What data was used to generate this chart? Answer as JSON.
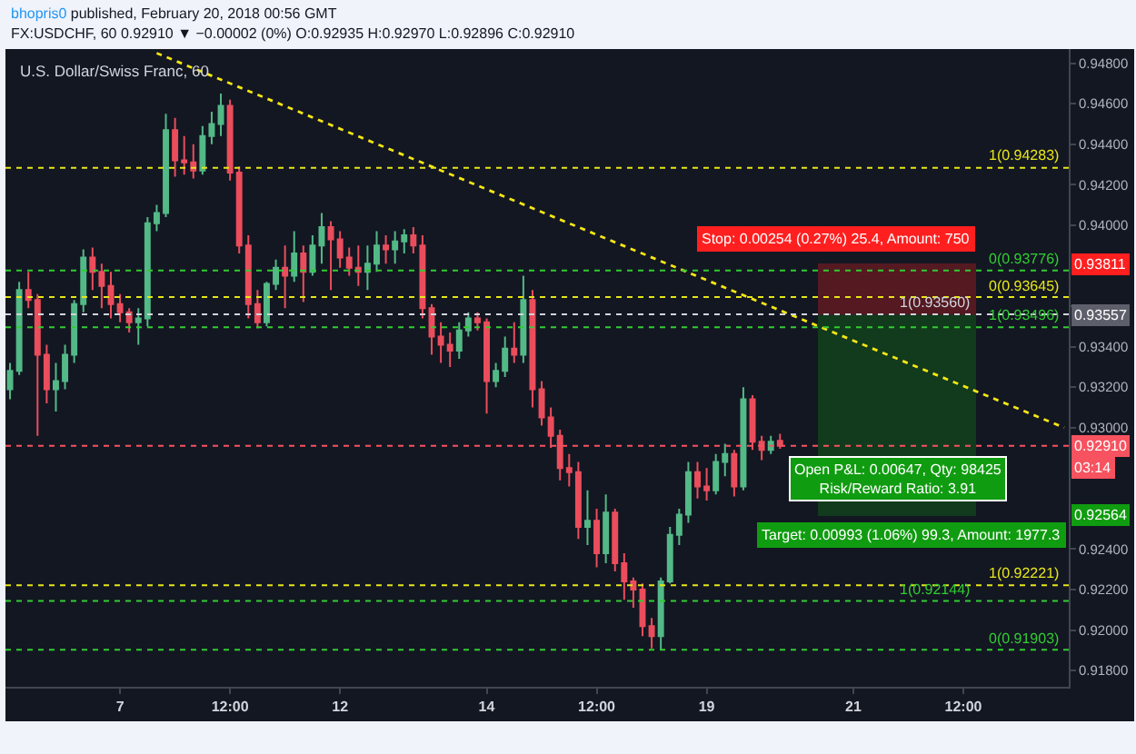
{
  "chart_data": {
    "type": "candlestick",
    "title": "U.S. Dollar/Swiss Franc, 60",
    "subtitle": "FX:USDCHF, 60 0.92910 ▼ −0.00002 (0%) O:0.92935 H:0.92970 L:0.92896 C:0.92910",
    "annotations": [
      "bhopris0 published, February 20, 2018 00:56 GMT",
      "Open P&L: 0.00647, Qty: 98425\nRisk/Reward Ratio: 3.91",
      "03:14",
      {
        "text": "0.93811",
        "y": 0.93811
      },
      {
        "text": "0.93557",
        "y": 0.93557
      },
      {
        "text": "0.92564",
        "y": 0.92564
      }
    ],
    "categories": [
      null,
      null,
      null,
      null,
      null,
      null,
      null,
      null,
      null,
      null,
      null,
      null,
      "7",
      null,
      null,
      null,
      null,
      null,
      null,
      null,
      null,
      null,
      null,
      null,
      "12:00",
      null,
      null,
      null,
      null,
      null,
      null,
      null,
      null,
      null,
      null,
      null,
      "12",
      null,
      null,
      null,
      null,
      null,
      null,
      null,
      null,
      null,
      null,
      null,
      null,
      null,
      null,
      null,
      "14",
      null,
      null,
      null,
      null,
      null,
      null,
      null,
      null,
      null,
      null,
      null,
      "12:00",
      null,
      null,
      null,
      null,
      null,
      null,
      null,
      null,
      null,
      null,
      null,
      "19",
      null,
      null,
      null,
      null,
      null,
      null,
      null,
      null,
      null,
      null,
      null,
      null,
      null,
      null,
      null,
      "21",
      null,
      null,
      null,
      null,
      null,
      null,
      null,
      null,
      null,
      null,
      null,
      "12:00",
      null,
      null,
      null,
      null,
      null,
      null,
      null,
      null,
      null,
      null,
      null
    ],
    "ohlc": [
      [
        0.9319,
        0.9332,
        0.9314,
        0.9328
      ],
      [
        0.9328,
        0.9372,
        0.9326,
        0.9368
      ],
      [
        0.9368,
        0.9377,
        0.9359,
        0.9363
      ],
      [
        0.9363,
        0.9366,
        0.9296,
        0.9336
      ],
      [
        0.9336,
        0.9341,
        0.9312,
        0.9319
      ],
      [
        0.9319,
        0.9332,
        0.9308,
        0.9323
      ],
      [
        0.9323,
        0.9341,
        0.9319,
        0.9336
      ],
      [
        0.9336,
        0.9363,
        0.9332,
        0.9361
      ],
      [
        0.9361,
        0.9388,
        0.9357,
        0.9384
      ],
      [
        0.9384,
        0.9389,
        0.9368,
        0.9377
      ],
      [
        0.9377,
        0.9381,
        0.9359,
        0.937
      ],
      [
        0.937,
        0.9377,
        0.9354,
        0.9361
      ],
      [
        0.9361,
        0.9366,
        0.9352,
        0.9357
      ],
      [
        0.9357,
        0.9359,
        0.9347,
        0.9352
      ],
      [
        0.9352,
        0.9359,
        0.9341,
        0.9354
      ],
      [
        0.9354,
        0.9404,
        0.935,
        0.9401
      ],
      [
        0.9401,
        0.941,
        0.9397,
        0.9406
      ],
      [
        0.9406,
        0.9455,
        0.9404,
        0.9447
      ],
      [
        0.9447,
        0.9453,
        0.9424,
        0.9432
      ],
      [
        0.9432,
        0.9444,
        0.9425,
        0.9431
      ],
      [
        0.9431,
        0.944,
        0.9423,
        0.9427
      ],
      [
        0.9427,
        0.9449,
        0.9425,
        0.9444
      ],
      [
        0.9444,
        0.9456,
        0.944,
        0.945
      ],
      [
        0.945,
        0.9465,
        0.9444,
        0.9459
      ],
      [
        0.9459,
        0.9462,
        0.9422,
        0.9426
      ],
      [
        0.9426,
        0.9429,
        0.9386,
        0.939
      ],
      [
        0.939,
        0.9395,
        0.9354,
        0.9361
      ],
      [
        0.9361,
        0.9368,
        0.9349,
        0.9352
      ],
      [
        0.9352,
        0.9372,
        0.935,
        0.9371
      ],
      [
        0.9371,
        0.9383,
        0.9368,
        0.9379
      ],
      [
        0.9379,
        0.939,
        0.9359,
        0.9375
      ],
      [
        0.9375,
        0.9397,
        0.9372,
        0.9386
      ],
      [
        0.9386,
        0.939,
        0.9362,
        0.9377
      ],
      [
        0.9377,
        0.9395,
        0.9375,
        0.939
      ],
      [
        0.939,
        0.9406,
        0.9381,
        0.9399
      ],
      [
        0.9399,
        0.9402,
        0.9368,
        0.9393
      ],
      [
        0.9393,
        0.9397,
        0.9379,
        0.9384
      ],
      [
        0.9384,
        0.9389,
        0.9375,
        0.9379
      ],
      [
        0.9379,
        0.939,
        0.937,
        0.9377
      ],
      [
        0.9377,
        0.939,
        0.9368,
        0.9381
      ],
      [
        0.9381,
        0.9397,
        0.9377,
        0.939
      ],
      [
        0.939,
        0.9395,
        0.9381,
        0.9388
      ],
      [
        0.9388,
        0.9397,
        0.9381,
        0.9392
      ],
      [
        0.9392,
        0.9398,
        0.9386,
        0.9395
      ],
      [
        0.9395,
        0.9399,
        0.9386,
        0.939
      ],
      [
        0.939,
        0.9395,
        0.9354,
        0.9359
      ],
      [
        0.9359,
        0.9361,
        0.9336,
        0.9345
      ],
      [
        0.9345,
        0.9352,
        0.9332,
        0.9341
      ],
      [
        0.9341,
        0.9347,
        0.933,
        0.9338
      ],
      [
        0.9338,
        0.9352,
        0.9334,
        0.9348
      ],
      [
        0.9348,
        0.9357,
        0.9345,
        0.9354
      ],
      [
        0.9354,
        0.9357,
        0.9348,
        0.9352
      ],
      [
        0.9352,
        0.9354,
        0.9307,
        0.9323
      ],
      [
        0.9323,
        0.9332,
        0.932,
        0.9328
      ],
      [
        0.9328,
        0.9345,
        0.9325,
        0.9339
      ],
      [
        0.9339,
        0.9352,
        0.9332,
        0.9336
      ],
      [
        0.9336,
        0.9375,
        0.9332,
        0.9363
      ],
      [
        0.9363,
        0.9368,
        0.931,
        0.9319
      ],
      [
        0.9319,
        0.9323,
        0.9301,
        0.9305
      ],
      [
        0.9305,
        0.931,
        0.929,
        0.9296
      ],
      [
        0.9296,
        0.9299,
        0.9274,
        0.928
      ],
      [
        0.928,
        0.9287,
        0.9271,
        0.9278
      ],
      [
        0.9278,
        0.9283,
        0.9245,
        0.9251
      ],
      [
        0.9251,
        0.9269,
        0.9242,
        0.9254
      ],
      [
        0.9254,
        0.926,
        0.9231,
        0.9238
      ],
      [
        0.9238,
        0.9267,
        0.9233,
        0.9258
      ],
      [
        0.9258,
        0.926,
        0.9229,
        0.9233
      ],
      [
        0.9233,
        0.9238,
        0.9215,
        0.9224
      ],
      [
        0.9224,
        0.9226,
        0.9211,
        0.922
      ],
      [
        0.922,
        0.9223,
        0.9197,
        0.9202
      ],
      [
        0.9202,
        0.9206,
        0.9191,
        0.9197
      ],
      [
        0.9197,
        0.9226,
        0.919,
        0.9224
      ],
      [
        0.9224,
        0.9251,
        0.9223,
        0.9247
      ],
      [
        0.9247,
        0.926,
        0.9242,
        0.9257
      ],
      [
        0.9257,
        0.9283,
        0.9253,
        0.9278
      ],
      [
        0.9278,
        0.9283,
        0.9265,
        0.9271
      ],
      [
        0.9271,
        0.928,
        0.9264,
        0.9269
      ],
      [
        0.9269,
        0.9287,
        0.9267,
        0.9283
      ],
      [
        0.9283,
        0.9292,
        0.9276,
        0.9287
      ],
      [
        0.9287,
        0.9289,
        0.9266,
        0.9271
      ],
      [
        0.9271,
        0.932,
        0.9269,
        0.9314
      ],
      [
        0.9314,
        0.9316,
        0.9289,
        0.9293
      ],
      [
        0.9293,
        0.9296,
        0.9284,
        0.9289
      ],
      [
        0.9289,
        0.9296,
        0.9287,
        0.9293
      ],
      [
        0.92935,
        0.9297,
        0.92896,
        0.9291
      ],
      null,
      null,
      null,
      null,
      null,
      null,
      null,
      null,
      null,
      null,
      null,
      null,
      null,
      null,
      null,
      null,
      null,
      null,
      null,
      null,
      null,
      null,
      null,
      null,
      null,
      null,
      null,
      null,
      null,
      null,
      null
    ],
    "colors": [
      "#53b987",
      "#53b987",
      "#eb4d5c",
      "#eb4d5c",
      "#eb4d5c",
      "#53b987",
      "#53b987",
      "#53b987",
      "#53b987",
      "#eb4d5c",
      "#eb4d5c",
      "#eb4d5c",
      "#eb4d5c",
      "#eb4d5c",
      "#53b987",
      "#53b987",
      "#53b987",
      "#53b987",
      "#eb4d5c",
      "#eb4d5c",
      "#eb4d5c",
      "#53b987",
      "#53b987",
      "#53b987",
      "#eb4d5c",
      "#eb4d5c",
      "#eb4d5c",
      "#eb4d5c",
      "#53b987",
      "#53b987",
      "#eb4d5c",
      "#53b987",
      "#eb4d5c",
      "#53b987",
      "#53b987",
      "#eb4d5c",
      "#eb4d5c",
      "#eb4d5c",
      "#eb4d5c",
      "#53b987",
      "#53b987",
      "#eb4d5c",
      "#53b987",
      "#53b987",
      "#eb4d5c",
      "#eb4d5c",
      "#eb4d5c",
      "#eb4d5c",
      "#eb4d5c",
      "#53b987",
      "#53b987",
      "#eb4d5c",
      "#eb4d5c",
      "#53b987",
      "#53b987",
      "#eb4d5c",
      "#53b987",
      "#eb4d5c",
      "#eb4d5c",
      "#eb4d5c",
      "#eb4d5c",
      "#eb4d5c",
      "#eb4d5c",
      "#53b987",
      "#eb4d5c",
      "#53b987",
      "#eb4d5c",
      "#eb4d5c",
      "#eb4d5c",
      "#eb4d5c",
      "#eb4d5c",
      "#53b987",
      "#53b987",
      "#53b987",
      "#53b987",
      "#eb4d5c",
      "#eb4d5c",
      "#53b987",
      "#53b987",
      "#eb4d5c",
      "#53b987",
      "#eb4d5c",
      "#eb4d5c",
      "#53b987",
      "#eb4d5c",
      null,
      null,
      null,
      null,
      null,
      null,
      null,
      null,
      null,
      null,
      null,
      null,
      null,
      null,
      null,
      null,
      null,
      null,
      null,
      null,
      null,
      null,
      null,
      null,
      null,
      null,
      null,
      null,
      null,
      null,
      null
    ],
    "series": [
      {
        "type": "line",
        "color": "#f5e614",
        "line_style": "dotted",
        "values": [
          null,
          null,
          null,
          null,
          null,
          null,
          null,
          null,
          null,
          null,
          null,
          null,
          null,
          null,
          null,
          null,
          0.9485,
          null,
          null,
          null,
          null,
          null,
          null,
          null,
          null,
          null,
          null,
          null,
          null,
          null,
          null,
          null,
          null,
          null,
          null,
          null,
          null,
          null,
          null,
          null,
          null,
          null,
          null,
          null,
          null,
          null,
          null,
          null,
          null,
          null,
          null,
          null,
          null,
          null,
          null,
          null,
          null,
          null,
          null,
          null,
          null,
          null,
          null,
          null,
          null,
          null,
          null,
          null,
          null,
          null,
          null,
          null,
          null,
          null,
          null,
          null,
          null,
          null,
          null,
          null,
          null,
          null,
          null,
          null,
          null,
          null,
          null,
          null,
          null,
          null,
          null,
          null,
          null,
          null,
          null,
          null,
          null,
          null,
          null,
          null,
          null,
          null,
          null,
          null,
          null,
          null,
          null,
          null,
          null,
          null,
          null,
          null,
          null,
          null,
          null,
          0.93
        ]
      }
    ],
    "ylim": [
      0.9172,
      0.9487
    ],
    "yticks": [
      {
        "value": 0.918,
        "label": "0.91800"
      },
      {
        "value": 0.92,
        "label": "0.92000"
      },
      {
        "value": 0.922,
        "label": "0.92200"
      },
      {
        "value": 0.924,
        "label": "0.92400"
      },
      {
        "value": 0.93,
        "label": "0.93000"
      },
      {
        "value": 0.932,
        "label": "0.93200"
      },
      {
        "value": 0.934,
        "label": "0.93400"
      },
      {
        "value": 0.936,
        "label": null
      },
      {
        "value": 0.94,
        "label": "0.94000"
      },
      {
        "value": 0.942,
        "label": "0.94200"
      },
      {
        "value": 0.944,
        "label": "0.94400"
      },
      {
        "value": 0.946,
        "label": "0.94600"
      },
      {
        "value": 0.948,
        "label": "0.94800"
      }
    ],
    "ref_lines": [
      {
        "axis": "y",
        "value": 0.94283,
        "label": "1(0.94283)",
        "color": "#e6e619",
        "line_style": "dotted"
      },
      {
        "axis": "y",
        "value": 0.93776,
        "label": "0(0.93776)",
        "color": "#33cc33",
        "line_style": "dotted"
      },
      {
        "axis": "y",
        "value": 0.93645,
        "label": "0(0.93645)",
        "color": "#e6e619",
        "line_style": "dotted"
      },
      {
        "axis": "y",
        "value": 0.9356,
        "label": "1(0.93560)",
        "color": "#d1d4dc",
        "line_style": "dotted"
      },
      {
        "axis": "y",
        "value": 0.93496,
        "label": "1(0.93496)",
        "color": "#33cc33",
        "line_style": "dotted"
      },
      {
        "axis": "y",
        "value": 0.9291,
        "label": "0.92910",
        "color": "#f7525f",
        "line_style": "dotted"
      },
      {
        "axis": "y",
        "value": 0.92221,
        "label": "1(0.92221)",
        "color": "#e6e619",
        "line_style": "dotted"
      },
      {
        "axis": "y",
        "value": 0.92144,
        "label": "1(0.92144)",
        "color": "#33cc33",
        "line_style": "dotted"
      },
      {
        "axis": "y",
        "value": 0.91903,
        "label": "0(0.91903)",
        "color": "#33cc33",
        "line_style": "dotted"
      }
    ],
    "bands": [
      {
        "axis": "y",
        "from": 0.93557,
        "to": 0.93811,
        "label": "Stop: 0.00254 (0.27%) 25.4, Amount: 750",
        "color": "#ff1f1f"
      },
      {
        "axis": "y",
        "from": 0.92564,
        "to": 0.93557,
        "label": "Target: 0.00993 (1.06%) 99.3, Amount: 1977.3",
        "color": "#109c10"
      }
    ]
  }
}
